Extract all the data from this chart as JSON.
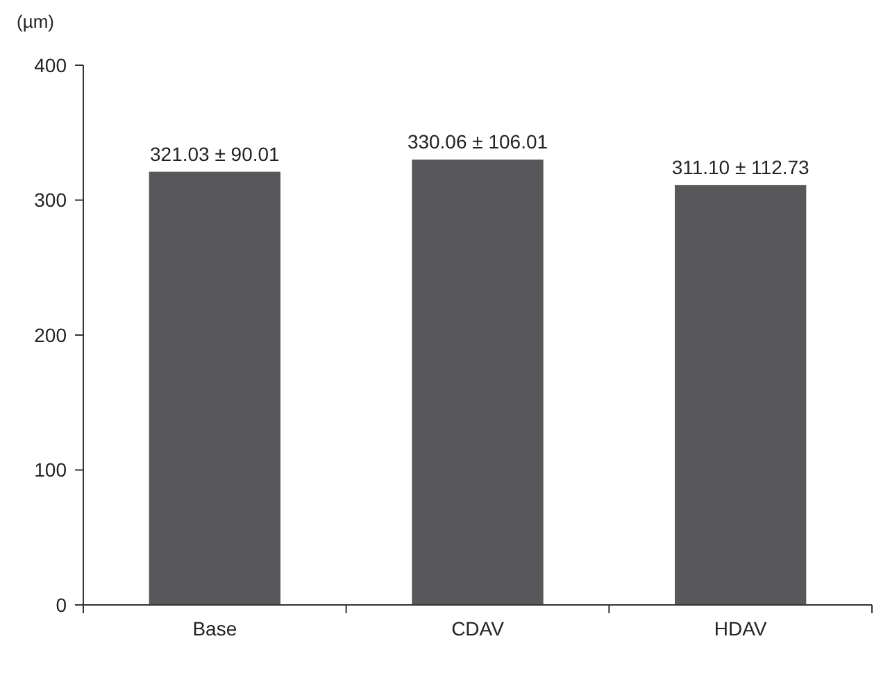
{
  "chart_data": {
    "type": "bar",
    "ylabel": "(µm)",
    "categories": [
      "Base",
      "CDAV",
      "HDAV"
    ],
    "values": [
      321.03,
      330.06,
      311.1
    ],
    "color": "#58585a",
    "value_labels": [
      "321.03 ± 90.01",
      "330.06 ± 106.01",
      "311.10 ± 112.73"
    ],
    "ylim": [
      0,
      400
    ],
    "yticks": [
      0,
      100,
      200,
      300,
      400
    ],
    "grid": false
  }
}
